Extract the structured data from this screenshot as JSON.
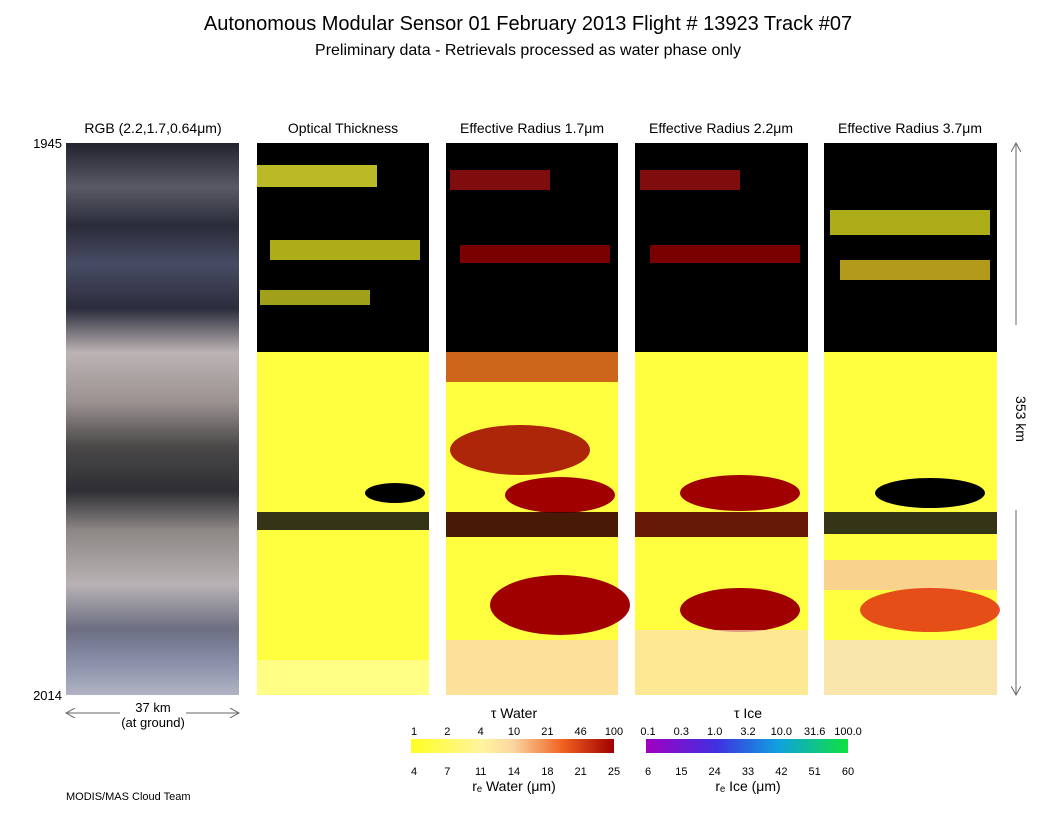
{
  "header": {
    "title": "Autonomous Modular Sensor  01 February 2013  Flight # 13923 Track #07",
    "subtitle": "Preliminary data - Retrievals processed as water phase only"
  },
  "panels": [
    {
      "label": "RGB (2.2,1.7,0.64μm)"
    },
    {
      "label": "Optical Thickness"
    },
    {
      "label": "Effective Radius 1.7μm"
    },
    {
      "label": "Effective Radius 2.2μm"
    },
    {
      "label": "Effective Radius 3.7μm"
    }
  ],
  "time_axis": {
    "start": "1945",
    "end": "2014"
  },
  "scale": {
    "width": "37 km",
    "width_note": "(at ground)",
    "length": "353 km"
  },
  "colorbars": [
    {
      "top_title": "τ Water",
      "top_ticks": [
        "1",
        "2",
        "4",
        "10",
        "21",
        "46",
        "100"
      ],
      "bottom_ticks": [
        "4",
        "7",
        "11",
        "14",
        "18",
        "21",
        "25"
      ],
      "bottom_title": "rₑ Water (μm)"
    },
    {
      "top_title": "τ Ice",
      "top_ticks": [
        "0.1",
        "0.3",
        "1.0",
        "3.2",
        "10.0",
        "31.6",
        "100.0"
      ],
      "bottom_ticks": [
        "6",
        "15",
        "24",
        "33",
        "42",
        "51",
        "60"
      ],
      "bottom_title": "rₑ Ice (μm)"
    }
  ],
  "footer": "MODIS/MAS Cloud Team"
}
